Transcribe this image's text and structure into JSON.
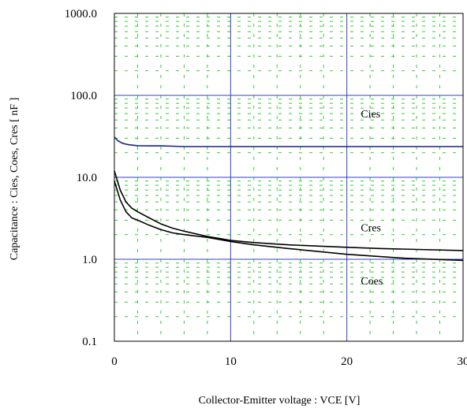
{
  "chart_data": {
    "type": "line",
    "title": "",
    "xlabel": "Collector-Emitter voltage : VCE [V]",
    "ylabel": "Capacitance : Cies, Coes, Cres [ nF ]",
    "xlim": [
      0,
      30
    ],
    "ylim": [
      0.1,
      1000
    ],
    "y_scale": "log",
    "x_ticks": [
      0,
      10,
      20,
      30
    ],
    "x_tick_labels": [
      "0",
      "10",
      "20",
      "30"
    ],
    "y_ticks": [
      0.1,
      1,
      10,
      100,
      1000
    ],
    "y_tick_labels": [
      "0.1",
      "1.0",
      "10.0",
      "100.0",
      "1000.0"
    ],
    "grid": true,
    "series": [
      {
        "name": "Cies",
        "color": "#1a237e",
        "x": [
          0,
          0.3,
          0.7,
          1.2,
          2,
          3,
          4,
          5,
          6,
          10,
          15,
          20,
          25,
          30
        ],
        "y": [
          31,
          28,
          26,
          25,
          24.3,
          24.2,
          24.2,
          24.0,
          23.7,
          23.7,
          23.7,
          23.7,
          23.7,
          23.7
        ]
      },
      {
        "name": "Cres",
        "color": "#000000",
        "x": [
          0,
          0.5,
          1,
          1.5,
          2,
          3,
          4,
          5,
          6,
          8,
          10,
          12,
          15,
          20,
          23,
          26,
          30
        ],
        "y": [
          12,
          7,
          5,
          4.2,
          3.8,
          3.2,
          2.7,
          2.4,
          2.2,
          1.9,
          1.7,
          1.6,
          1.5,
          1.4,
          1.35,
          1.32,
          1.28
        ]
      },
      {
        "name": "Coes",
        "color": "#000000",
        "x": [
          0,
          0.5,
          1,
          1.5,
          2,
          3,
          4,
          5,
          6,
          8,
          10,
          12,
          15,
          20,
          25,
          30
        ],
        "y": [
          9,
          5.3,
          3.8,
          3.2,
          3.0,
          2.6,
          2.3,
          2.1,
          2.0,
          1.85,
          1.65,
          1.5,
          1.35,
          1.15,
          1.03,
          0.97
        ]
      }
    ],
    "annotations": [
      {
        "text": "Cies",
        "x": 21.2,
        "y": 60
      },
      {
        "text": "Cres",
        "x": 21.2,
        "y": 2.45
      },
      {
        "text": "Coes",
        "x": 21.2,
        "y": 0.55
      }
    ]
  }
}
